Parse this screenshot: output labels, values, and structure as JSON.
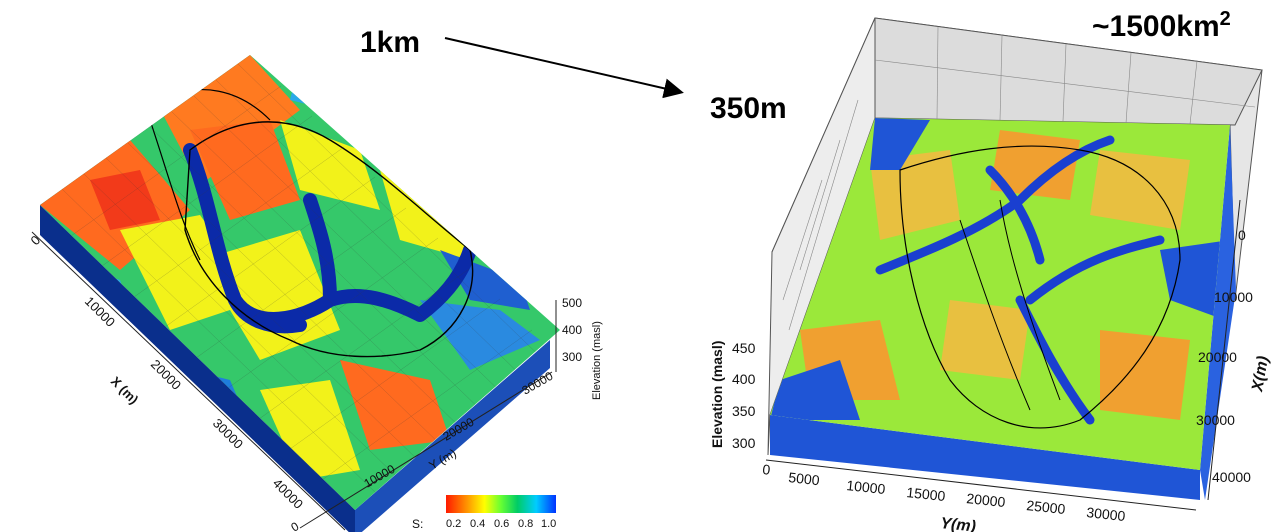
{
  "labels": {
    "coarse_resolution": "1km",
    "fine_resolution": "350m",
    "area_base": "~1500km",
    "area_exp": "2"
  },
  "left_model": {
    "x_axis_title": "X (m)",
    "x_ticks": [
      "0",
      "10000",
      "20000",
      "30000",
      "40000"
    ],
    "y_axis_title": "Y (m)",
    "y_ticks": [
      "0",
      "10000",
      "20000",
      "30000"
    ],
    "z_axis_title": "Elevation (masl)",
    "z_ticks": [
      "300",
      "400",
      "500"
    ]
  },
  "colorbar": {
    "label": "S:",
    "ticks": [
      "0.2",
      "0.4",
      "0.6",
      "0.8",
      "1.0"
    ],
    "colors": [
      "#ff1a00",
      "#ff9a00",
      "#ffff00",
      "#66ff33",
      "#00cc66",
      "#00ccff",
      "#0033ff"
    ]
  },
  "right_model": {
    "z_axis_title": "Elevation (masl)",
    "z_ticks": [
      "300",
      "350",
      "400",
      "450"
    ],
    "y_axis_title": "Y(m)",
    "y_ticks": [
      "0",
      "5000",
      "10000",
      "15000",
      "20000",
      "25000",
      "30000"
    ],
    "x_axis_title": "X(m)",
    "x_ticks": [
      "0",
      "10000",
      "20000",
      "30000",
      "40000"
    ]
  }
}
